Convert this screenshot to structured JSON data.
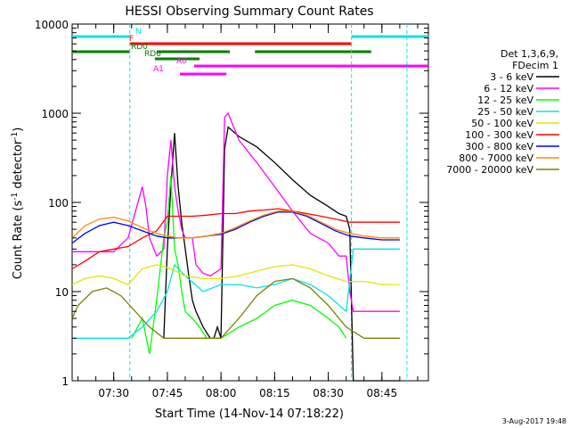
{
  "chart_data": {
    "type": "line",
    "title": "HESSI Observing Summary Count Rates",
    "xlabel": "Start Time (14-Nov-14 07:18:22)",
    "ylabel_main": "Count Rate (s",
    "ylabel_sup1": "-1",
    "ylabel_mid": " detector",
    "ylabel_sup2": "-1",
    "ylabel_end": ")",
    "xlim": [
      "07:18:22",
      "08:58:00"
    ],
    "ylim": [
      1,
      10000
    ],
    "yscale": "log",
    "xticks": [
      "07:30",
      "07:45",
      "08:00",
      "08:15",
      "08:30",
      "08:45"
    ],
    "yticks": [
      "1",
      "10",
      "100",
      "1000",
      "10000"
    ],
    "legend_header": [
      "Det 1,3,6,9,",
      "FDecim 1"
    ],
    "legend_placement": "right",
    "timestamp": "3-Aug-2017 19:48",
    "flags": [
      {
        "label": "N",
        "color": "#00e5e5",
        "segments": [
          [
            "07:18:22",
            "07:34:30"
          ],
          [
            "08:36:30",
            "08:58:00"
          ]
        ]
      },
      {
        "label": "F",
        "color": "#ff0000",
        "segments": [
          [
            "07:34:30",
            "08:36:30"
          ]
        ]
      },
      {
        "label": "RD0",
        "color": "#008000",
        "segments": [
          [
            "07:18:22",
            "07:34:30"
          ],
          [
            "07:42:00",
            "08:02:30"
          ],
          [
            "08:09:30",
            "08:42:00"
          ]
        ]
      },
      {
        "label": "RD6",
        "color": "#008000",
        "segments": [
          [
            "07:41:30",
            "07:54:00"
          ]
        ]
      },
      {
        "label": "A0",
        "color": "#ff00ff",
        "segments": [
          [
            "07:52:30",
            "08:58:00"
          ]
        ]
      },
      {
        "label": "A1",
        "color": "#ff00ff",
        "segments": [
          [
            "07:48:30",
            "08:01:30"
          ]
        ]
      }
    ],
    "series": [
      {
        "name": "3 - 6 keV",
        "color": "#000000",
        "x": [
          "07:44",
          "07:45",
          "07:46",
          "07:47",
          "07:48",
          "07:49",
          "07:50",
          "07:51",
          "07:52",
          "07:53",
          "07:55",
          "07:57",
          "07:58",
          "07:59",
          "08:00",
          "08:01",
          "08:02",
          "08:05",
          "08:10",
          "08:15",
          "08:20",
          "08:25",
          "08:30",
          "08:33",
          "08:35",
          "08:36",
          "08:37",
          "08:40",
          "08:45",
          "08:48",
          "08:50"
        ],
        "values": [
          3,
          30,
          150,
          600,
          150,
          60,
          30,
          15,
          8,
          6,
          4,
          3,
          3,
          4,
          3,
          400,
          700,
          550,
          420,
          280,
          180,
          120,
          90,
          75,
          70,
          50,
          1,
          1,
          1,
          1,
          1
        ]
      },
      {
        "name": "6 - 12 keV",
        "color": "#ff00ff",
        "x": [
          "07:18:22",
          "07:30",
          "07:34",
          "07:38",
          "07:39",
          "07:40",
          "07:42",
          "07:44",
          "07:45",
          "07:46",
          "07:47",
          "07:48",
          "07:49",
          "07:50",
          "07:52",
          "07:53",
          "07:55",
          "07:57",
          "08:00",
          "08:01",
          "08:02",
          "08:05",
          "08:10",
          "08:15",
          "08:20",
          "08:25",
          "08:30",
          "08:33",
          "08:35",
          "08:36",
          "08:37",
          "08:50"
        ],
        "values": [
          28,
          28,
          40,
          150,
          90,
          40,
          25,
          30,
          200,
          500,
          150,
          80,
          50,
          40,
          40,
          20,
          16,
          15,
          18,
          900,
          1000,
          500,
          280,
          150,
          80,
          45,
          35,
          25,
          25,
          10,
          6,
          6
        ]
      },
      {
        "name": "12 - 25 keV",
        "color": "#00ff00",
        "x": [
          "07:35",
          "07:38",
          "07:40",
          "07:42",
          "07:44",
          "07:45",
          "07:46",
          "07:47",
          "07:48",
          "07:49",
          "07:50",
          "07:52",
          "07:54",
          "07:56",
          "07:58",
          "08:00",
          "08:05",
          "08:10",
          "08:15",
          "08:20",
          "08:25",
          "08:30",
          "08:33",
          "08:35"
        ],
        "values": [
          3,
          5,
          2,
          8,
          40,
          60,
          200,
          30,
          20,
          10,
          6,
          5,
          4,
          3,
          3,
          3,
          4,
          5,
          7,
          8,
          7,
          5,
          4,
          3
        ]
      },
      {
        "name": "25 - 50 keV",
        "color": "#00e5e5",
        "x": [
          "07:18:22",
          "07:25",
          "07:30",
          "07:34",
          "07:38",
          "07:42",
          "07:45",
          "07:47",
          "07:50",
          "07:55",
          "08:00",
          "08:05",
          "08:10",
          "08:15",
          "08:20",
          "08:25",
          "08:30",
          "08:35",
          "08:37",
          "08:40",
          "08:45",
          "08:50"
        ],
        "values": [
          3,
          3,
          3,
          3,
          4,
          6,
          10,
          20,
          15,
          10,
          12,
          12,
          11,
          12,
          14,
          12,
          9,
          6,
          30,
          30,
          30,
          30
        ]
      },
      {
        "name": "50 - 100 keV",
        "color": "#e5e500",
        "x": [
          "07:18:22",
          "07:22",
          "07:26",
          "07:30",
          "07:34",
          "07:38",
          "07:42",
          "07:46",
          "07:50",
          "07:55",
          "08:00",
          "08:05",
          "08:10",
          "08:15",
          "08:20",
          "08:25",
          "08:30",
          "08:35",
          "08:40",
          "08:45",
          "08:50"
        ],
        "values": [
          12,
          14,
          15,
          14,
          12,
          18,
          20,
          18,
          15,
          14,
          14,
          15,
          17,
          19,
          20,
          18,
          15,
          13,
          13,
          12,
          12
        ]
      },
      {
        "name": "100 - 300 keV",
        "color": "#ff0000",
        "x": [
          "07:18:22",
          "07:22",
          "07:26",
          "07:30",
          "07:34",
          "07:38",
          "07:42",
          "07:45",
          "07:48",
          "07:52",
          "07:56",
          "08:00",
          "08:04",
          "08:08",
          "08:12",
          "08:16",
          "08:20",
          "08:24",
          "08:28",
          "08:32",
          "08:36",
          "08:40",
          "08:45",
          "08:50"
        ],
        "values": [
          18,
          22,
          28,
          30,
          32,
          40,
          48,
          70,
          70,
          70,
          72,
          75,
          75,
          80,
          82,
          85,
          80,
          75,
          70,
          65,
          60,
          60,
          60,
          60
        ]
      },
      {
        "name": "300 - 800 keV",
        "color": "#0000ff",
        "x": [
          "07:18:22",
          "07:22",
          "07:26",
          "07:30",
          "07:34",
          "07:38",
          "07:42",
          "07:45",
          "07:48",
          "07:52",
          "07:56",
          "08:00",
          "08:04",
          "08:08",
          "08:12",
          "08:16",
          "08:20",
          "08:24",
          "08:28",
          "08:32",
          "08:36",
          "08:40",
          "08:45",
          "08:50"
        ],
        "values": [
          35,
          45,
          55,
          60,
          55,
          48,
          42,
          40,
          40,
          40,
          42,
          44,
          50,
          60,
          70,
          78,
          78,
          70,
          58,
          48,
          42,
          40,
          38,
          38
        ]
      },
      {
        "name": "800 - 7000 keV",
        "color": "#ff8c00",
        "x": [
          "07:18:22",
          "07:22",
          "07:26",
          "07:30",
          "07:34",
          "07:38",
          "07:42",
          "07:45",
          "07:48",
          "07:52",
          "07:56",
          "08:00",
          "08:04",
          "08:08",
          "08:12",
          "08:16",
          "08:20",
          "08:24",
          "08:28",
          "08:32",
          "08:36",
          "08:40",
          "08:45",
          "08:50"
        ],
        "values": [
          40,
          55,
          65,
          68,
          62,
          52,
          45,
          42,
          40,
          40,
          42,
          45,
          52,
          62,
          72,
          80,
          80,
          72,
          60,
          50,
          45,
          42,
          40,
          40
        ]
      },
      {
        "name": "7000 - 20000 keV",
        "color": "#808000",
        "x": [
          "07:18:22",
          "07:20",
          "07:24",
          "07:28",
          "07:32",
          "07:36",
          "07:40",
          "07:44",
          "07:48",
          "07:52",
          "07:56",
          "08:00",
          "08:05",
          "08:10",
          "08:15",
          "08:20",
          "08:25",
          "08:30",
          "08:35",
          "08:40",
          "08:45",
          "08:50"
        ],
        "values": [
          5,
          7,
          10,
          11,
          9,
          6,
          4,
          3,
          3,
          3,
          3,
          3,
          5,
          9,
          13,
          14,
          11,
          7,
          4,
          3,
          3,
          3
        ]
      }
    ]
  }
}
